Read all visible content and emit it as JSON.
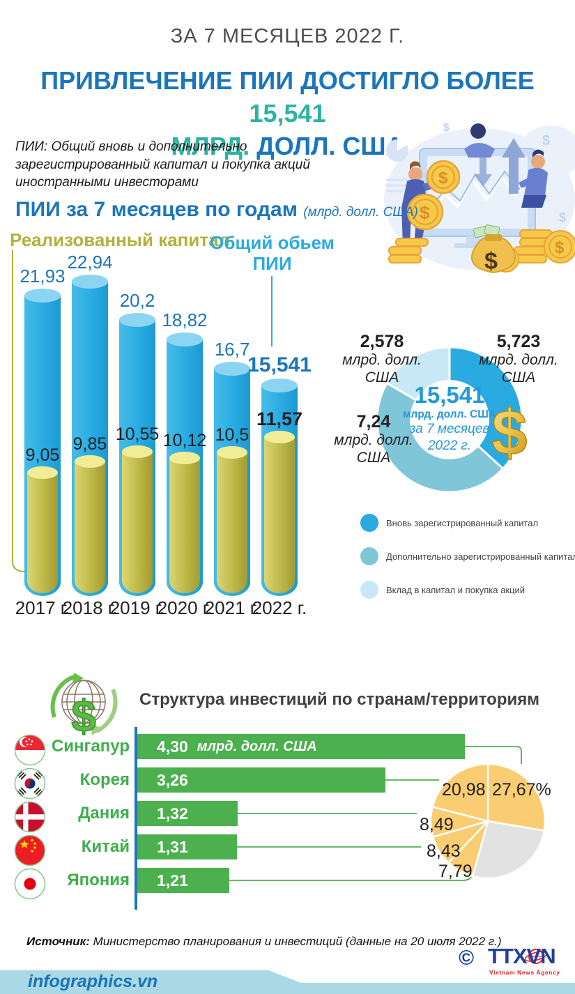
{
  "header": {
    "kicker": "ЗА 7 МЕСЯЦЕВ 2022 Г.",
    "title_line1_main": "ПРИВЛЕЧЕНИЕ ПИИ ДОСТИГЛО БОЛЕЕ ",
    "title_line1_value": "15,541",
    "title_line2_teal": "МЛРД.",
    "title_line2_blue": " ДОЛЛ. США",
    "description": "ПИИ: Общий вновь и дополнительно зарегистрированный капитал и покупка акций иностранными инвесторами"
  },
  "fdi_by_year_labels": {
    "title": "ПИИ за 7 месяцев по годам",
    "unit_note": "(млрд. долл. США)",
    "label_realized": "Реализованный капитал",
    "label_total_line1": "Общий обьем",
    "label_total_line2": "ПИИ"
  },
  "chart_data": [
    {
      "id": "fdi_by_year",
      "type": "bar",
      "title": "ПИИ за 7 месяцев по годам",
      "ylabel": "млрд. долл. США",
      "categories": [
        "2017 г.",
        "2018 г.",
        "2019 г.",
        "2020 г.",
        "2021 г.",
        "2022 г."
      ],
      "series": [
        {
          "name": "Общий обьем ПИИ",
          "values": [
            21.93,
            22.94,
            20.2,
            18.82,
            16.7,
            15.541
          ],
          "labels": [
            "21,93",
            "22,94",
            "20,2",
            "18,82",
            "16,7",
            "15,541"
          ],
          "color": "#29ABE2"
        },
        {
          "name": "Реализованный капитал",
          "values": [
            9.05,
            9.85,
            10.55,
            10.12,
            10.5,
            11.57
          ],
          "labels": [
            "9,05",
            "9,85",
            "10,55",
            "10,12",
            "10,5",
            "11,57"
          ],
          "color": "#C4BD4F"
        }
      ],
      "ylim": [
        0,
        24
      ],
      "grid": false,
      "legend_position": "top"
    },
    {
      "id": "fdi_structure_2022",
      "type": "pie",
      "subtype": "donut",
      "center": {
        "value": "15,541",
        "unit": "млрд. долл. США",
        "caption_line1": "за 7 месяцев",
        "caption_line2": "2022 г."
      },
      "slices": [
        {
          "name": "Вновь зарегистрированный капитал",
          "value": 5.723,
          "label": "5,723",
          "unit_line1": "млрд. долл.",
          "unit_line2": "США",
          "color": "#29ABE2"
        },
        {
          "name": "Дополнительно зарегистрированный капитал",
          "value": 7.24,
          "label": "7,24",
          "unit_line1": "млрд. долл.",
          "unit_line2": "США",
          "color": "#7FC6D9"
        },
        {
          "name": "Вклад в капитал и покупка акций",
          "value": 2.578,
          "label": "2,578",
          "unit_line1": "млрд. долл.",
          "unit_line2": "США",
          "color": "#C9E8F7"
        }
      ],
      "legend": [
        {
          "label": "Вновь зарегистрированный капитал",
          "color": "#29ABE2"
        },
        {
          "label": "Дополнительно зарегистрированный капитал",
          "color": "#7FC6D9"
        },
        {
          "label": "Вклад в капитал и покупка акций",
          "color": "#C9E8F7"
        }
      ]
    },
    {
      "id": "investment_by_country",
      "type": "bar",
      "title": "Структура инвестиций по странам/территориям",
      "categories": [
        "Сингапур",
        "Корея",
        "Дания",
        "Китай",
        "Япония"
      ],
      "values": [
        4.3,
        3.26,
        1.32,
        1.31,
        1.21
      ],
      "value_labels": [
        "4,30",
        "3,26",
        "1,32",
        "1,31",
        "1,21"
      ],
      "unit_label": "млрд. долл. США",
      "bar_color": "#4CB04F",
      "pie": {
        "slices": [
          {
            "name": "Сингапур",
            "label": "27,67%",
            "value": 27.67,
            "color": "#FACD72"
          },
          {
            "name": "",
            "label": "",
            "value": 26.64,
            "color": "#E2E2E2"
          },
          {
            "name": "Япония",
            "label": "7,79",
            "value": 7.79,
            "color": "#FACD72"
          },
          {
            "name": "Китай",
            "label": "8,43",
            "value": 8.43,
            "color": "#FACD72"
          },
          {
            "name": "Дания",
            "label": "8,49",
            "value": 8.49,
            "color": "#FACD72"
          },
          {
            "name": "Корея",
            "label": "20,98",
            "value": 20.98,
            "color": "#FACD72"
          }
        ]
      }
    }
  ],
  "footer": {
    "source_label": "Источник:",
    "source_text": " Министерство планирования и инвестиций (данные на 20 июля 2022 г.)",
    "site": "infographics.vn",
    "copyright": "©",
    "agency": "TTXVN",
    "agency_caption": "Vietnam News Agency"
  }
}
